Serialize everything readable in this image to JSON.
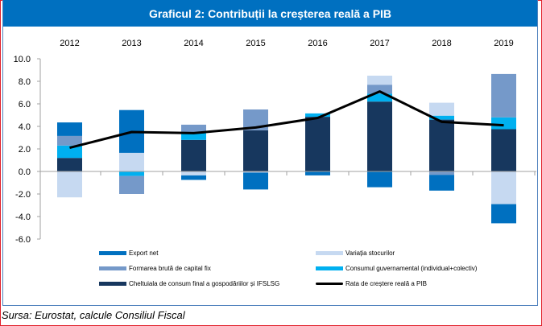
{
  "header": {
    "title": "Graficul 2: Contribuții la creșterea reală a PIB"
  },
  "source": "Sursa: Eurostat, calcule Consiliul Fiscal",
  "chart_data": {
    "type": "bar",
    "stacked": true,
    "title": "Graficul 2: Contribuții la creșterea reală a PIB",
    "xlabel": "",
    "ylabel": "",
    "categories": [
      "2012",
      "2013",
      "2014",
      "2015",
      "2016",
      "2017",
      "2018",
      "2019"
    ],
    "ylim": [
      -6,
      10
    ],
    "yticks": [
      10,
      8,
      6,
      4,
      2,
      0,
      -2,
      -4,
      -6
    ],
    "ytick_labels": [
      "10.0",
      "8.0",
      "6.0",
      "4.0",
      "2.0",
      "0.0",
      "-2.0",
      "-4.0",
      "-6.0"
    ],
    "x_axis_position": "top",
    "grid": false,
    "legend_position": "bottom",
    "series": [
      {
        "name": "Cheltuiala de consum final a gospodăriilor și IFSLSG",
        "key": "households",
        "color": "#17375e",
        "values": [
          1.2,
          0.0,
          2.8,
          3.65,
          4.85,
          6.2,
          4.6,
          3.75
        ]
      },
      {
        "name": "Consumul guvernamental (individual+colectiv)",
        "key": "government",
        "color": "#00b0f0",
        "values": [
          1.1,
          -0.4,
          0.6,
          0.0,
          0.3,
          0.7,
          0.35,
          1.05
        ]
      },
      {
        "name": "Formarea brută de capital fix",
        "key": "gfcf",
        "color": "#7599c9",
        "values": [
          0.85,
          -1.6,
          0.75,
          1.85,
          0.0,
          0.8,
          -0.3,
          3.85
        ]
      },
      {
        "name": "Variația stocurilor",
        "key": "stocks",
        "color": "#c6d9f1",
        "values": [
          -2.3,
          1.65,
          -0.35,
          -0.1,
          0.0,
          0.8,
          1.15,
          -2.9
        ]
      },
      {
        "name": "Export net",
        "key": "net_exports",
        "color": "#0070c0",
        "values": [
          1.2,
          3.8,
          -0.4,
          -1.5,
          -0.35,
          -1.4,
          -1.4,
          -1.7
        ]
      }
    ],
    "line": {
      "name": "Rata de creștere reală a PIB",
      "color": "#000000",
      "values": [
        2.1,
        3.5,
        3.4,
        3.9,
        4.75,
        7.1,
        4.4,
        4.1
      ]
    }
  },
  "legend": [
    {
      "label": "Export net",
      "color": "#0070c0",
      "kind": "bar"
    },
    {
      "label": "Variația stocurilor",
      "color": "#c6d9f1",
      "kind": "bar"
    },
    {
      "label": "Formarea brută de capital fix",
      "color": "#7599c9",
      "kind": "bar"
    },
    {
      "label": "Consumul guvernamental (individual+colectiv)",
      "color": "#00b0f0",
      "kind": "bar"
    },
    {
      "label": "Cheltuiala de consum final a gospodăriilor și IFSLSG",
      "color": "#17375e",
      "kind": "bar"
    },
    {
      "label": "Rata de creștere reală a PIB",
      "color": "#000000",
      "kind": "line"
    }
  ]
}
